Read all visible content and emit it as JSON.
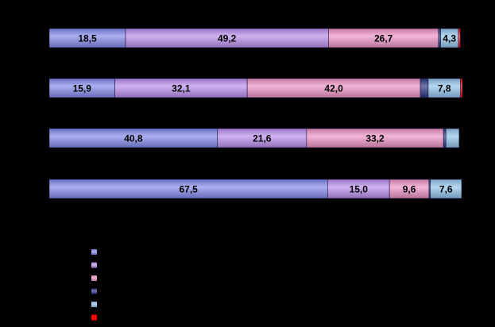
{
  "chart_data": {
    "type": "bar",
    "orientation": "horizontal",
    "stacked": true,
    "percent": true,
    "xlim": [
      0,
      100
    ],
    "categories": [
      "",
      "",
      "",
      ""
    ],
    "series": [
      {
        "color": "#7f86e6",
        "values": [
          18.5,
          15.9,
          40.8,
          67.5
        ]
      },
      {
        "color": "#b58ae8",
        "values": [
          49.2,
          32.1,
          21.6,
          15.0
        ]
      },
      {
        "color": "#e98fc0",
        "values": [
          26.7,
          42.0,
          33.2,
          9.6
        ]
      },
      {
        "color": "#27307e",
        "values": [
          0.5,
          1.9,
          0.6,
          0.3
        ]
      },
      {
        "color": "#8fc0e8",
        "values": [
          4.3,
          7.8,
          3.2,
          7.6
        ]
      },
      {
        "color": "#ff0000",
        "values": [
          0.5,
          0.5,
          0.0,
          0.0
        ]
      }
    ],
    "labels": [
      [
        "18,5",
        "49,2",
        "26,7",
        "",
        "4,3",
        ""
      ],
      [
        "15,9",
        "32,1",
        "42,0",
        "",
        "7,8",
        ""
      ],
      [
        "40,8",
        "21,6",
        "33,2",
        "",
        "",
        ""
      ],
      [
        "67,5",
        "15,0",
        "9,6",
        "",
        "7,6",
        ""
      ]
    ],
    "legend": {
      "position": "bottom-left"
    }
  }
}
